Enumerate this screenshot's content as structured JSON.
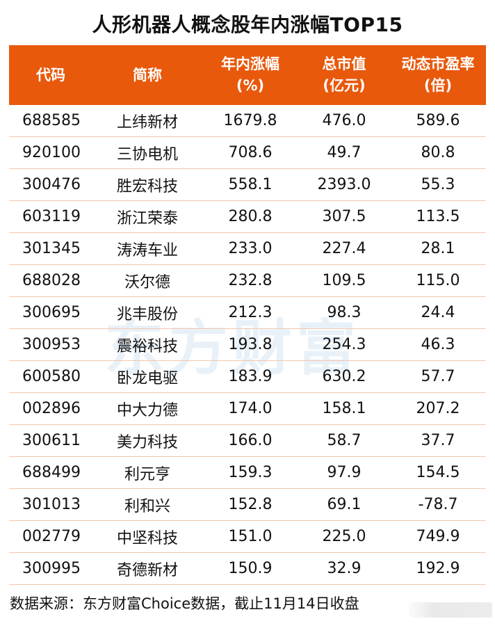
{
  "title": "人形机器人概念股年内涨幅TOP15",
  "header": {
    "code": "代码",
    "name": "简称",
    "ytd_line1": "年内涨幅",
    "ytd_line2": "(%)",
    "mcap_line1": "总市值",
    "mcap_line2": "(亿元)",
    "pe_line1": "动态市盈率",
    "pe_line2": "(倍)"
  },
  "rows": [
    {
      "code": "688585",
      "name": "上纬新材",
      "ytd": "1679.8",
      "mcap": "476.0",
      "pe": "589.6"
    },
    {
      "code": "920100",
      "name": "三协电机",
      "ytd": "708.6",
      "mcap": "49.7",
      "pe": "80.8"
    },
    {
      "code": "300476",
      "name": "胜宏科技",
      "ytd": "558.1",
      "mcap": "2393.0",
      "pe": "55.3"
    },
    {
      "code": "603119",
      "name": "浙江荣泰",
      "ytd": "280.8",
      "mcap": "307.5",
      "pe": "113.5"
    },
    {
      "code": "301345",
      "name": "涛涛车业",
      "ytd": "233.0",
      "mcap": "227.4",
      "pe": "28.1"
    },
    {
      "code": "688028",
      "name": "沃尔德",
      "ytd": "232.8",
      "mcap": "109.5",
      "pe": "115.0"
    },
    {
      "code": "300695",
      "name": "兆丰股份",
      "ytd": "212.3",
      "mcap": "98.3",
      "pe": "24.4"
    },
    {
      "code": "300953",
      "name": "震裕科技",
      "ytd": "193.8",
      "mcap": "254.3",
      "pe": "46.3"
    },
    {
      "code": "600580",
      "name": "卧龙电驱",
      "ytd": "183.9",
      "mcap": "630.2",
      "pe": "57.7"
    },
    {
      "code": "002896",
      "name": "中大力德",
      "ytd": "174.0",
      "mcap": "158.1",
      "pe": "207.2"
    },
    {
      "code": "300611",
      "name": "美力科技",
      "ytd": "166.0",
      "mcap": "58.7",
      "pe": "37.7"
    },
    {
      "code": "688499",
      "name": "利元亨",
      "ytd": "159.3",
      "mcap": "97.9",
      "pe": "154.5"
    },
    {
      "code": "301013",
      "name": "利和兴",
      "ytd": "152.8",
      "mcap": "69.1",
      "pe": "-78.7"
    },
    {
      "code": "002779",
      "name": "中坚科技",
      "ytd": "151.0",
      "mcap": "225.0",
      "pe": "749.9"
    },
    {
      "code": "300995",
      "name": "奇德新材",
      "ytd": "150.9",
      "mcap": "32.9",
      "pe": "192.9"
    }
  ],
  "watermark": "东方财富",
  "footer": "数据来源：东方财富Choice数据，截止11月14日收盘",
  "colors": {
    "header_bg": "#e8590c",
    "header_text": "#ffffff",
    "row_border": "#f0c8b0",
    "watermark": "#e9f1f8"
  },
  "chart_data": {
    "type": "table",
    "title": "人形机器人概念股年内涨幅TOP15",
    "columns": [
      "代码",
      "简称",
      "年内涨幅(%)",
      "总市值(亿元)",
      "动态市盈率(倍)"
    ],
    "rows": [
      [
        "688585",
        "上纬新材",
        1679.8,
        476.0,
        589.6
      ],
      [
        "920100",
        "三协电机",
        708.6,
        49.7,
        80.8
      ],
      [
        "300476",
        "胜宏科技",
        558.1,
        2393.0,
        55.3
      ],
      [
        "603119",
        "浙江荣泰",
        280.8,
        307.5,
        113.5
      ],
      [
        "301345",
        "涛涛车业",
        233.0,
        227.4,
        28.1
      ],
      [
        "688028",
        "沃尔德",
        232.8,
        109.5,
        115.0
      ],
      [
        "300695",
        "兆丰股份",
        212.3,
        98.3,
        24.4
      ],
      [
        "300953",
        "震裕科技",
        193.8,
        254.3,
        46.3
      ],
      [
        "600580",
        "卧龙电驱",
        183.9,
        630.2,
        57.7
      ],
      [
        "002896",
        "中大力德",
        174.0,
        158.1,
        207.2
      ],
      [
        "300611",
        "美力科技",
        166.0,
        58.7,
        37.7
      ],
      [
        "688499",
        "利元亨",
        159.3,
        97.9,
        154.5
      ],
      [
        "301013",
        "利和兴",
        152.8,
        69.1,
        -78.7
      ],
      [
        "002779",
        "中坚科技",
        151.0,
        225.0,
        749.9
      ],
      [
        "300995",
        "奇德新材",
        150.9,
        32.9,
        192.9
      ]
    ],
    "source": "数据来源：东方财富Choice数据，截止11月14日收盘"
  }
}
